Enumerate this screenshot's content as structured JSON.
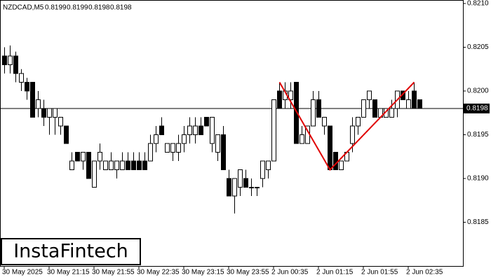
{
  "chart_data": {
    "type": "candlestick",
    "title": "NZDCAD,M5",
    "header_values": [
      0.8199,
      0.8199,
      0.8198,
      0.8198
    ],
    "watermark": "InstaFintech",
    "categories": [
      "30 May 2025",
      null,
      null,
      null,
      null,
      null,
      null,
      null,
      "30 May 21:15",
      null,
      null,
      null,
      null,
      null,
      null,
      null,
      "30 May 21:55",
      null,
      null,
      null,
      null,
      null,
      null,
      null,
      "30 May 22:35",
      null,
      null,
      null,
      null,
      null,
      null,
      null,
      "30 May 23:15",
      null,
      null,
      null,
      null,
      null,
      null,
      null,
      "30 May 23:55",
      null,
      null,
      null,
      null,
      null,
      null,
      null,
      "2 Jun 00:35",
      null,
      null,
      null,
      null,
      null,
      null,
      null,
      "2 Jun 01:15",
      null,
      null,
      null,
      null,
      null,
      null,
      null,
      "2 Jun 01:55",
      null,
      null,
      null,
      null,
      null,
      null,
      null,
      "2 Jun 02:35",
      null,
      null
    ],
    "open": [
      0.8204,
      0.8203,
      0.8204,
      0.8201,
      0.8201,
      0.8201,
      0.8198,
      0.8198,
      0.8197,
      0.8197,
      0.8196,
      0.8196,
      0.8191,
      0.8193,
      0.8192,
      0.8193,
      0.8189,
      0.8192,
      0.8191,
      0.8191,
      0.8191,
      0.8191,
      0.8192,
      0.8192,
      0.8192,
      0.8192,
      0.8192,
      0.8194,
      0.8196,
      0.8193,
      0.8193,
      0.8193,
      0.8194,
      0.8195,
      0.8195,
      0.8196,
      0.8197,
      0.8194,
      0.8193,
      0.8195,
      0.819,
      0.8188,
      0.8189,
      0.819,
      0.8189,
      0.8189,
      0.819,
      0.8191,
      0.8192,
      0.82,
      0.8199,
      0.8199,
      0.8201,
      0.8194,
      0.8194,
      0.8196,
      0.8199,
      0.8196,
      0.8196,
      0.8193,
      0.8191,
      0.8192,
      0.8194,
      0.8196,
      0.8197,
      0.8199,
      0.8199,
      0.8197,
      0.8197,
      0.8197,
      0.8198,
      0.82,
      0.8198,
      0.82,
      0.8199
    ],
    "high": [
      0.8205,
      0.82052,
      0.82045,
      0.82025,
      0.82015,
      0.8201,
      0.82,
      0.8199,
      0.8198,
      0.8198,
      0.8197,
      0.8196,
      0.8193,
      0.8193,
      0.8193,
      0.8193,
      0.8192,
      0.8194,
      0.8192,
      0.8193,
      0.8192,
      0.8193,
      0.8193,
      0.8193,
      0.8193,
      0.8193,
      0.8195,
      0.8196,
      0.8197,
      0.8194,
      0.8194,
      0.8195,
      0.8196,
      0.8197,
      0.8197,
      0.8197,
      0.8197,
      0.8197,
      0.8195,
      0.8196,
      0.8191,
      0.819,
      0.8191,
      0.8191,
      0.819,
      0.8189,
      0.8192,
      0.8192,
      0.8199,
      0.8201,
      0.8201,
      0.8201,
      0.8201,
      0.8196,
      0.8196,
      0.82,
      0.82,
      0.8197,
      0.8196,
      0.8193,
      0.8192,
      0.8193,
      0.8197,
      0.8197,
      0.8199,
      0.82,
      0.8199,
      0.8198,
      0.8198,
      0.8199,
      0.82,
      0.82,
      0.82,
      0.8201,
      0.8199
    ],
    "low": [
      0.8202,
      0.8202,
      0.8201,
      0.82,
      0.8199,
      0.8197,
      0.8197,
      0.8196,
      0.8195,
      0.8195,
      0.8195,
      0.8194,
      0.8191,
      0.8192,
      0.8191,
      0.819,
      0.8189,
      0.8191,
      0.8191,
      0.8191,
      0.819,
      0.8191,
      0.8191,
      0.8191,
      0.8191,
      0.8191,
      0.8192,
      0.8193,
      0.8195,
      0.8193,
      0.8192,
      0.8192,
      0.8193,
      0.8194,
      0.8194,
      0.8195,
      0.8196,
      0.8193,
      0.8192,
      0.8191,
      0.8188,
      0.8186,
      0.8188,
      0.8189,
      0.8188,
      0.8188,
      0.8189,
      0.819,
      0.8192,
      0.8198,
      0.8198,
      0.8198,
      0.8194,
      0.8194,
      0.8194,
      0.8196,
      0.8197,
      0.8195,
      0.8191,
      0.8191,
      0.8191,
      0.8192,
      0.8193,
      0.8195,
      0.8197,
      0.8198,
      0.8197,
      0.8197,
      0.8197,
      0.8197,
      0.8197,
      0.8199,
      0.8198,
      0.8198,
      0.8198
    ],
    "close": [
      0.8203,
      0.8204,
      0.8202,
      0.8202,
      0.82,
      0.8197,
      0.8199,
      0.8197,
      0.8198,
      0.8198,
      0.8197,
      0.8194,
      0.8192,
      0.8192,
      0.8193,
      0.819,
      0.8192,
      0.8193,
      0.8192,
      0.8192,
      0.8192,
      0.8192,
      0.8191,
      0.8191,
      0.8191,
      0.8191,
      0.8194,
      0.8195,
      0.8195,
      0.8194,
      0.8194,
      0.8194,
      0.8195,
      0.8196,
      0.8196,
      0.8195,
      0.8196,
      0.8197,
      0.8195,
      0.8191,
      0.8188,
      0.819,
      0.8191,
      0.8189,
      0.8189,
      0.8189,
      0.8192,
      0.8192,
      0.8199,
      0.8198,
      0.82,
      0.82,
      0.8194,
      0.8195,
      0.8196,
      0.8199,
      0.8197,
      0.8197,
      0.8191,
      0.8191,
      0.8192,
      0.8193,
      0.8196,
      0.8197,
      0.8199,
      0.82,
      0.8197,
      0.8198,
      0.8198,
      0.8198,
      0.82,
      0.8199,
      0.8199,
      0.8198,
      0.8198
    ],
    "up_color": "#ffffff",
    "down_color": "#000000",
    "bid": 0.8198,
    "pattern": {
      "color": "#e00000",
      "x": [
        49,
        58,
        73
      ],
      "y": [
        0.8201,
        0.8191,
        0.8201
      ]
    },
    "ylim": [
      0.818,
      0.82104
    ],
    "yticks": [
      0.8185,
      {
        "value": 0.819,
        "label": "0.8190"
      },
      0.8195,
      {
        "value": 0.82,
        "label": "0.8200"
      },
      0.8205,
      {
        "value": 0.821,
        "label": "0.8210"
      }
    ]
  }
}
